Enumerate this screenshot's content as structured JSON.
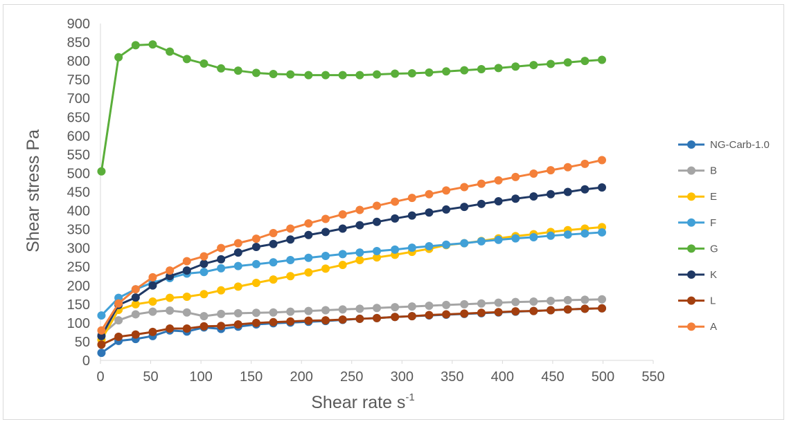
{
  "chart_data": {
    "type": "line",
    "xlabel": "Shear rate s",
    "xlabel_superscript": "-1",
    "ylabel": "Shear stress Pa",
    "xlim": [
      0,
      550
    ],
    "ylim": [
      0,
      900
    ],
    "xticks": [
      "0",
      "50",
      "100",
      "150",
      "200",
      "250",
      "300",
      "350",
      "400",
      "450",
      "500",
      "550"
    ],
    "yticks": [
      "0",
      "50",
      "100",
      "150",
      "200",
      "250",
      "300",
      "350",
      "400",
      "450",
      "500",
      "550",
      "600",
      "650",
      "700",
      "750",
      "800",
      "850",
      "900"
    ],
    "grid": false,
    "legend_position": "right",
    "x": [
      1,
      18,
      35,
      52,
      69,
      86,
      103,
      120,
      137,
      155,
      172,
      189,
      207,
      224,
      241,
      258,
      275,
      293,
      310,
      327,
      344,
      362,
      379,
      396,
      413,
      431,
      448,
      465,
      482,
      499
    ],
    "series": [
      {
        "name": "NG-Carb-1.0",
        "color": "#2e75b6",
        "values": [
          20,
          52,
          57,
          65,
          80,
          77,
          88,
          84,
          90,
          96,
          99,
          101,
          103,
          105,
          108,
          111,
          113,
          116,
          118,
          120,
          122,
          124,
          126,
          128,
          130,
          132,
          134,
          136,
          138,
          139
        ]
      },
      {
        "name": "B",
        "color": "#a5a5a5",
        "values": [
          68,
          107,
          123,
          130,
          133,
          128,
          118,
          124,
          126,
          127,
          128,
          130,
          132,
          134,
          136,
          138,
          140,
          142,
          144,
          146,
          148,
          150,
          152,
          154,
          156,
          157,
          159,
          161,
          162,
          163
        ]
      },
      {
        "name": "E",
        "color": "#ffc000",
        "values": [
          55,
          135,
          150,
          157,
          167,
          170,
          177,
          187,
          197,
          207,
          216,
          225,
          235,
          245,
          255,
          268,
          275,
          282,
          290,
          298,
          308,
          313,
          319,
          326,
          332,
          337,
          343,
          348,
          352,
          356
        ]
      },
      {
        "name": "F",
        "color": "#41a0d7",
        "values": [
          120,
          167,
          190,
          208,
          220,
          232,
          236,
          246,
          252,
          257,
          262,
          268,
          274,
          279,
          284,
          288,
          292,
          296,
          301,
          305,
          309,
          313,
          318,
          322,
          326,
          329,
          333,
          336,
          339,
          342
        ]
      },
      {
        "name": "G",
        "color": "#5aae3a",
        "values": [
          505,
          810,
          842,
          844,
          825,
          805,
          793,
          780,
          774,
          768,
          765,
          764,
          762,
          762,
          762,
          762,
          764,
          766,
          767,
          769,
          772,
          775,
          778,
          781,
          785,
          789,
          792,
          796,
          800,
          803
        ]
      },
      {
        "name": "K",
        "color": "#1f3864",
        "values": [
          65,
          148,
          168,
          200,
          225,
          240,
          258,
          270,
          288,
          303,
          311,
          323,
          335,
          343,
          352,
          361,
          370,
          379,
          387,
          395,
          403,
          410,
          418,
          425,
          432,
          438,
          444,
          450,
          457,
          462
        ]
      },
      {
        "name": "L",
        "color": "#a33f0f",
        "values": [
          42,
          63,
          69,
          76,
          85,
          85,
          91,
          92,
          96,
          100,
          102,
          104,
          106,
          107,
          109,
          111,
          113,
          116,
          118,
          121,
          123,
          125,
          127,
          129,
          131,
          132,
          134,
          136,
          138,
          139
        ]
      },
      {
        "name": "A",
        "color": "#f4803a",
        "values": [
          80,
          152,
          190,
          222,
          240,
          265,
          278,
          300,
          313,
          325,
          340,
          352,
          366,
          378,
          390,
          402,
          413,
          424,
          434,
          444,
          454,
          463,
          472,
          481,
          490,
          499,
          508,
          516,
          525,
          535
        ]
      }
    ]
  }
}
